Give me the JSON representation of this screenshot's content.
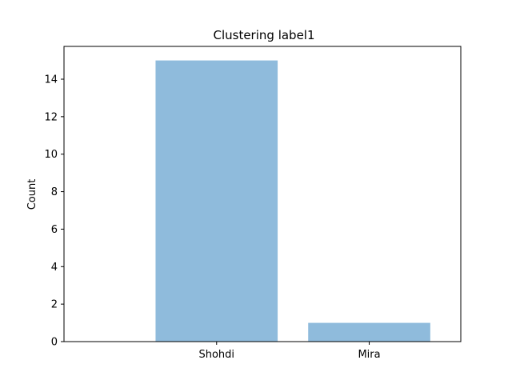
{
  "chart_data": {
    "type": "bar",
    "title": "Clustering label1",
    "xlabel": "",
    "ylabel": "Count",
    "categories": [
      "Shohdi",
      "Mira"
    ],
    "values": [
      15,
      1
    ],
    "ylim": [
      0,
      15.75
    ],
    "yticks": [
      0,
      2,
      4,
      6,
      8,
      10,
      12,
      14
    ],
    "bar_color": "#8fbbdc",
    "grid": false,
    "legend": "none"
  }
}
